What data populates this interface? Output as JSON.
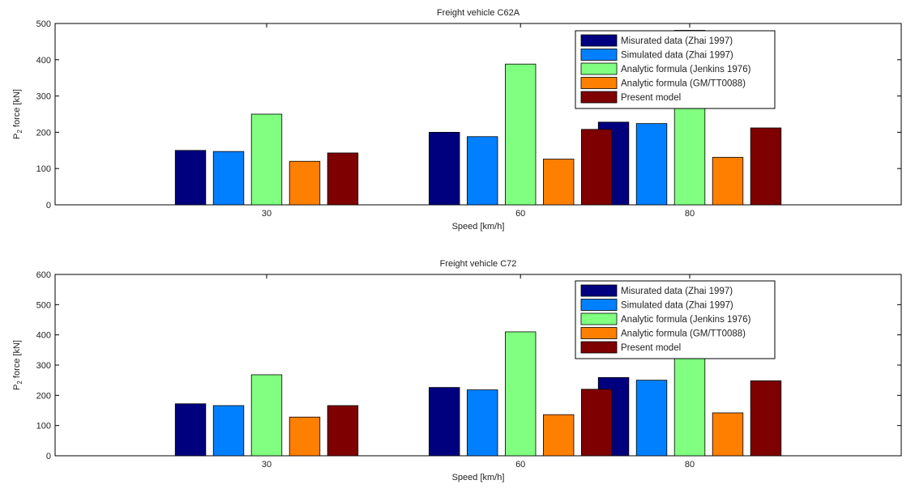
{
  "chart_data": [
    {
      "type": "bar",
      "title": "Freight vehicle C62A",
      "xlabel": "Speed [km/h]",
      "ylabel": "P",
      "ylabel_sub": "2",
      "ylabel_rest": " force [kN]",
      "categories": [
        "30",
        "60",
        "80"
      ],
      "x_positions": [
        30,
        60,
        80
      ],
      "xlim": [
        5,
        105
      ],
      "ylim": [
        0,
        500
      ],
      "yticks": [
        0,
        100,
        200,
        300,
        400,
        500
      ],
      "legend_position": "top-right",
      "series": [
        {
          "name": "Misurated data (Zhai 1997)",
          "color": "#00007f",
          "values": [
            150,
            200,
            228
          ]
        },
        {
          "name": "Simulated data (Zhai 1997)",
          "color": "#0080ff",
          "values": [
            147,
            188,
            224
          ]
        },
        {
          "name": "Analytic formula (Jenkins 1976)",
          "color": "#80ff80",
          "values": [
            250,
            388,
            481
          ]
        },
        {
          "name": "Analytic formula (GM/TT0088)",
          "color": "#ff7f00",
          "values": [
            120,
            126,
            131
          ]
        },
        {
          "name": "Present model",
          "color": "#7f0000",
          "values": [
            143,
            208,
            212
          ]
        }
      ]
    },
    {
      "type": "bar",
      "title": "Freight vehicle C72",
      "xlabel": "Speed [km/h]",
      "ylabel": "P",
      "ylabel_sub": "2",
      "ylabel_rest": " force [kN]",
      "categories": [
        "30",
        "60",
        "80"
      ],
      "x_positions": [
        30,
        60,
        80
      ],
      "xlim": [
        5,
        105
      ],
      "ylim": [
        0,
        600
      ],
      "yticks": [
        0,
        100,
        200,
        300,
        400,
        500,
        600
      ],
      "legend_position": "top-right",
      "series": [
        {
          "name": "Misurated data (Zhai 1997)",
          "color": "#00007f",
          "values": [
            172,
            226,
            259
          ]
        },
        {
          "name": "Simulated data (Zhai 1997)",
          "color": "#0080ff",
          "values": [
            166,
            218,
            250
          ]
        },
        {
          "name": "Analytic formula (Jenkins 1976)",
          "color": "#80ff80",
          "values": [
            268,
            410,
            508
          ]
        },
        {
          "name": "Analytic formula (GM/TT0088)",
          "color": "#ff7f00",
          "values": [
            128,
            136,
            142
          ]
        },
        {
          "name": "Present model",
          "color": "#7f0000",
          "values": [
            166,
            220,
            248
          ]
        }
      ]
    }
  ]
}
